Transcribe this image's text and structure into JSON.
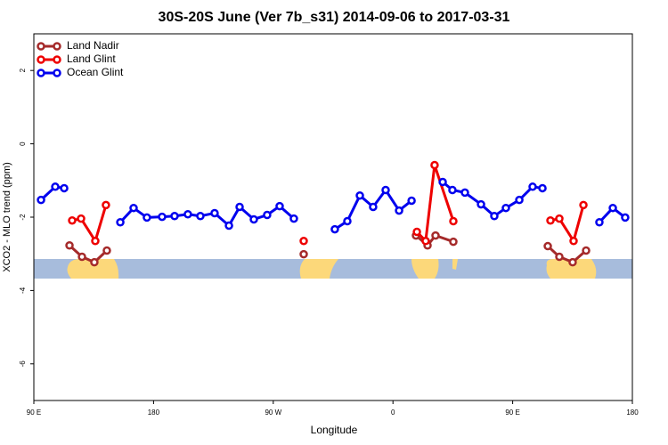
{
  "chart_data": {
    "type": "line",
    "title": "30S-20S June (Ver 7b_s31)   2014-09-06 to 2017-03-31",
    "x_label": "Longitude",
    "y_label": "XCO2 - MLO trend (ppm)",
    "xlim": [
      90,
      540
    ],
    "xticks": [
      {
        "value": 90,
        "label": "90 E"
      },
      {
        "value": 180,
        "label": "180"
      },
      {
        "value": 270,
        "label": "90 W"
      },
      {
        "value": 360,
        "label": "0"
      },
      {
        "value": 450,
        "label": "90 E"
      },
      {
        "value": 540,
        "label": "180"
      }
    ],
    "ylim": [
      -7,
      3
    ],
    "yticks": [
      -6,
      -4,
      -2,
      0,
      2
    ],
    "legend": "top-left",
    "series": [
      {
        "name": "Land Nadir",
        "color": "#a52a2a",
        "x": [
          116.8,
          126.2,
          135.5,
          144.9,
          null,
          292.9,
          null,
          377.3,
          386,
          392,
          405.4,
          null,
          476.4,
          485.1,
          495.1,
          505.2
        ],
        "values": [
          -2.77,
          -3.08,
          -3.23,
          -2.91,
          null,
          -3.01,
          null,
          -2.5,
          -2.77,
          -2.5,
          -2.67,
          null,
          -2.79,
          -3.08,
          -3.23,
          -2.91
        ]
      },
      {
        "name": "Land Glint",
        "color": "#ee0000",
        "x": [
          118.8,
          125.5,
          136.2,
          144.2,
          null,
          292.9,
          null,
          378,
          384.6,
          391.3,
          405.4,
          null,
          478.4,
          485.1,
          495.8,
          503.2
        ],
        "values": [
          -2.09,
          -2.04,
          -2.65,
          -1.67,
          null,
          -2.65,
          null,
          -2.4,
          -2.65,
          -0.58,
          -2.11,
          null,
          -2.09,
          -2.04,
          -2.65,
          -1.67
        ]
      },
      {
        "name": "Ocean Glint",
        "color": "#0000ee",
        "x": [
          95.4,
          106.1,
          112.8,
          null,
          155,
          165,
          175,
          186.4,
          195.8,
          205.8,
          215.2,
          225.9,
          236.7,
          244.7,
          255.4,
          265.4,
          274.8,
          285.5,
          null,
          316.3,
          325.7,
          335.1,
          345.1,
          354.5,
          364.6,
          374,
          null,
          397.4,
          404.7,
          414.1,
          426.2,
          436.2,
          444.9,
          455,
          465,
          472.4,
          null,
          515.2,
          525.3,
          534.6
        ],
        "values": [
          -1.53,
          -1.17,
          -1.21,
          null,
          -2.14,
          -1.75,
          -2.01,
          -1.99,
          -1.97,
          -1.92,
          -1.97,
          -1.89,
          -2.23,
          -1.72,
          -2.06,
          -1.94,
          -1.7,
          -2.04,
          null,
          -2.33,
          -2.11,
          -1.41,
          -1.72,
          -1.26,
          -1.82,
          -1.55,
          null,
          -1.04,
          -1.26,
          -1.33,
          -1.65,
          -1.97,
          -1.75,
          -1.53,
          -1.17,
          -1.21,
          null,
          -2.14,
          -1.75,
          -2.01
        ]
      }
    ]
  }
}
